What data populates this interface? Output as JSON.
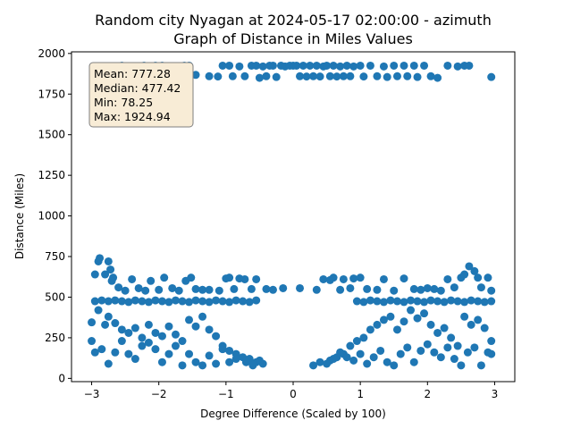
{
  "chart_data": {
    "type": "scatter",
    "title_line1": "Random city Nyagan at 2024-05-17 02:00:00  - azimuth",
    "title_line2": "Graph of Distance in Miles Values",
    "xlabel": "Degree Difference (Scaled by 100)",
    "ylabel": "Distance (Miles)",
    "xlim": [
      -3.3,
      3.3
    ],
    "ylim": [
      -20,
      2010
    ],
    "xticks": [
      -3,
      -2,
      -1,
      0,
      1,
      2,
      3
    ],
    "xtick_labels": [
      "−3",
      "−2",
      "−1",
      "0",
      "1",
      "2",
      "3"
    ],
    "yticks": [
      0,
      250,
      500,
      750,
      1000,
      1250,
      1500,
      1750,
      2000
    ],
    "ytick_labels": [
      "0",
      "250",
      "500",
      "750",
      "1000",
      "1250",
      "1500",
      "1750",
      "2000"
    ],
    "marker_color": "#1f77b4",
    "grid": false,
    "stats": {
      "mean": "Mean: 777.28",
      "median": "Median: 477.42",
      "min": "Min: 78.25",
      "max": "Max: 1924.94",
      "box_face": "#f8ecd6",
      "box_edge": "#7f7f7f"
    },
    "series": [
      {
        "points": [
          [
            -2.97,
            1910
          ],
          [
            -2.8,
            1920
          ],
          [
            -2.55,
            1925
          ],
          [
            -2.35,
            1848
          ],
          [
            -2.22,
            1925
          ],
          [
            -2.05,
            1925
          ],
          [
            -1.95,
            1925
          ],
          [
            -1.72,
            1915
          ],
          [
            -1.62,
            1925
          ],
          [
            -1.55,
            1925
          ],
          [
            -1.45,
            1868
          ],
          [
            -1.25,
            1860
          ],
          [
            -1.12,
            1858
          ],
          [
            -1.05,
            1925
          ],
          [
            -0.95,
            1925
          ],
          [
            -0.9,
            1860
          ],
          [
            -0.8,
            1920
          ],
          [
            -0.72,
            1860
          ],
          [
            -0.62,
            1925
          ],
          [
            -0.55,
            1925
          ],
          [
            -0.5,
            1850
          ],
          [
            -0.45,
            1920
          ],
          [
            -0.4,
            1860
          ],
          [
            -0.35,
            1925
          ],
          [
            -0.3,
            1925
          ],
          [
            -0.25,
            1855
          ],
          [
            -0.18,
            1925
          ],
          [
            -0.12,
            1920
          ],
          [
            -0.05,
            1925
          ],
          [
            0.0,
            1925
          ],
          [
            0.05,
            1925
          ],
          [
            0.1,
            1860
          ],
          [
            0.15,
            1925
          ],
          [
            0.2,
            1858
          ],
          [
            0.25,
            1925
          ],
          [
            0.3,
            1860
          ],
          [
            0.35,
            1925
          ],
          [
            0.4,
            1858
          ],
          [
            0.45,
            1920
          ],
          [
            0.5,
            1925
          ],
          [
            0.55,
            1860
          ],
          [
            0.6,
            1925
          ],
          [
            0.65,
            1858
          ],
          [
            0.7,
            1920
          ],
          [
            0.75,
            1860
          ],
          [
            0.8,
            1925
          ],
          [
            0.85,
            1860
          ],
          [
            0.9,
            1920
          ],
          [
            1.0,
            1925
          ],
          [
            1.05,
            1858
          ],
          [
            1.15,
            1925
          ],
          [
            1.25,
            1860
          ],
          [
            1.35,
            1920
          ],
          [
            1.4,
            1855
          ],
          [
            1.5,
            1925
          ],
          [
            1.55,
            1860
          ],
          [
            1.65,
            1925
          ],
          [
            1.7,
            1860
          ],
          [
            1.8,
            1925
          ],
          [
            1.85,
            1855
          ],
          [
            1.95,
            1925
          ],
          [
            2.05,
            1860
          ],
          [
            2.15,
            1850
          ],
          [
            2.3,
            1925
          ],
          [
            2.45,
            1920
          ],
          [
            2.55,
            1925
          ],
          [
            2.62,
            1925
          ],
          [
            2.95,
            1855
          ],
          [
            -2.9,
            720
          ],
          [
            -2.88,
            740
          ],
          [
            -2.8,
            640
          ],
          [
            -2.75,
            720
          ],
          [
            -2.72,
            670
          ],
          [
            -2.68,
            620
          ],
          [
            -2.95,
            640
          ],
          [
            -2.7,
            600
          ],
          [
            -2.6,
            560
          ],
          [
            -2.5,
            540
          ],
          [
            -2.4,
            610
          ],
          [
            -2.3,
            555
          ],
          [
            -2.2,
            540
          ],
          [
            -2.12,
            600
          ],
          [
            -2.0,
            545
          ],
          [
            -1.92,
            620
          ],
          [
            -1.8,
            555
          ],
          [
            -1.7,
            540
          ],
          [
            -1.6,
            600
          ],
          [
            -1.52,
            620
          ],
          [
            -1.45,
            550
          ],
          [
            -1.35,
            545
          ],
          [
            -1.25,
            545
          ],
          [
            -1.1,
            540
          ],
          [
            -1.0,
            615
          ],
          [
            -0.95,
            620
          ],
          [
            -0.88,
            550
          ],
          [
            -0.8,
            615
          ],
          [
            -0.72,
            610
          ],
          [
            -0.62,
            550
          ],
          [
            -0.55,
            610
          ],
          [
            -0.4,
            550
          ],
          [
            -0.3,
            545
          ],
          [
            -0.15,
            555
          ],
          [
            0.1,
            555
          ],
          [
            0.35,
            545
          ],
          [
            0.45,
            610
          ],
          [
            0.55,
            605
          ],
          [
            0.6,
            620
          ],
          [
            0.7,
            545
          ],
          [
            0.75,
            610
          ],
          [
            0.85,
            555
          ],
          [
            0.9,
            615
          ],
          [
            1.0,
            620
          ],
          [
            1.1,
            550
          ],
          [
            1.25,
            545
          ],
          [
            1.35,
            610
          ],
          [
            1.5,
            540
          ],
          [
            1.65,
            615
          ],
          [
            1.8,
            550
          ],
          [
            1.9,
            545
          ],
          [
            2.0,
            555
          ],
          [
            2.1,
            550
          ],
          [
            2.2,
            540
          ],
          [
            2.3,
            610
          ],
          [
            2.4,
            560
          ],
          [
            2.5,
            620
          ],
          [
            2.55,
            640
          ],
          [
            2.62,
            690
          ],
          [
            2.7,
            660
          ],
          [
            2.75,
            620
          ],
          [
            2.8,
            560
          ],
          [
            2.9,
            620
          ],
          [
            2.95,
            540
          ],
          [
            -2.95,
            475
          ],
          [
            -2.85,
            480
          ],
          [
            -2.75,
            475
          ],
          [
            -2.65,
            480
          ],
          [
            -2.55,
            475
          ],
          [
            -2.45,
            470
          ],
          [
            -2.35,
            480
          ],
          [
            -2.25,
            475
          ],
          [
            -2.15,
            470
          ],
          [
            -2.05,
            480
          ],
          [
            -1.95,
            475
          ],
          [
            -1.85,
            470
          ],
          [
            -1.75,
            480
          ],
          [
            -1.65,
            475
          ],
          [
            -1.55,
            470
          ],
          [
            -1.45,
            480
          ],
          [
            -1.35,
            475
          ],
          [
            -1.25,
            470
          ],
          [
            -1.15,
            480
          ],
          [
            -1.05,
            475
          ],
          [
            -0.95,
            470
          ],
          [
            -0.85,
            480
          ],
          [
            -0.75,
            475
          ],
          [
            -0.65,
            470
          ],
          [
            -0.55,
            480
          ],
          [
            0.95,
            475
          ],
          [
            1.05,
            470
          ],
          [
            1.15,
            480
          ],
          [
            1.25,
            475
          ],
          [
            1.35,
            470
          ],
          [
            1.45,
            480
          ],
          [
            1.55,
            475
          ],
          [
            1.65,
            470
          ],
          [
            1.75,
            480
          ],
          [
            1.85,
            475
          ],
          [
            1.95,
            470
          ],
          [
            2.05,
            480
          ],
          [
            2.15,
            475
          ],
          [
            2.25,
            470
          ],
          [
            2.35,
            480
          ],
          [
            2.45,
            475
          ],
          [
            2.55,
            470
          ],
          [
            2.65,
            480
          ],
          [
            2.75,
            475
          ],
          [
            2.85,
            470
          ],
          [
            2.95,
            475
          ],
          [
            -3.0,
            345
          ],
          [
            -2.9,
            420
          ],
          [
            -2.8,
            330
          ],
          [
            -2.75,
            380
          ],
          [
            -2.65,
            340
          ],
          [
            -2.55,
            300
          ],
          [
            -2.45,
            280
          ],
          [
            -2.35,
            310
          ],
          [
            -2.25,
            250
          ],
          [
            -2.15,
            330
          ],
          [
            -2.05,
            280
          ],
          [
            -1.95,
            260
          ],
          [
            -1.85,
            320
          ],
          [
            -1.75,
            270
          ],
          [
            -1.65,
            230
          ],
          [
            -1.55,
            360
          ],
          [
            -1.45,
            320
          ],
          [
            -1.35,
            380
          ],
          [
            -1.25,
            300
          ],
          [
            -1.15,
            260
          ],
          [
            -1.05,
            200
          ],
          [
            -0.95,
            170
          ],
          [
            -0.85,
            150
          ],
          [
            -0.75,
            130
          ],
          [
            -0.65,
            120
          ],
          [
            -0.55,
            100
          ],
          [
            -0.45,
            90
          ],
          [
            0.55,
            110
          ],
          [
            0.65,
            130
          ],
          [
            0.75,
            150
          ],
          [
            0.85,
            200
          ],
          [
            0.95,
            230
          ],
          [
            1.05,
            250
          ],
          [
            1.15,
            300
          ],
          [
            1.25,
            330
          ],
          [
            1.35,
            360
          ],
          [
            1.45,
            380
          ],
          [
            1.55,
            300
          ],
          [
            1.65,
            350
          ],
          [
            1.75,
            420
          ],
          [
            1.85,
            370
          ],
          [
            1.95,
            400
          ],
          [
            2.05,
            330
          ],
          [
            2.15,
            280
          ],
          [
            2.25,
            310
          ],
          [
            2.35,
            250
          ],
          [
            2.45,
            200
          ],
          [
            2.55,
            380
          ],
          [
            2.65,
            330
          ],
          [
            2.75,
            360
          ],
          [
            2.85,
            310
          ],
          [
            2.95,
            230
          ],
          [
            -3.0,
            230
          ],
          [
            -2.95,
            160
          ],
          [
            -2.85,
            180
          ],
          [
            -2.75,
            90
          ],
          [
            -2.65,
            160
          ],
          [
            -2.55,
            230
          ],
          [
            -2.45,
            150
          ],
          [
            -2.35,
            120
          ],
          [
            -2.25,
            200
          ],
          [
            -2.15,
            220
          ],
          [
            -2.05,
            180
          ],
          [
            -1.95,
            100
          ],
          [
            -1.85,
            150
          ],
          [
            -1.75,
            200
          ],
          [
            -1.65,
            80
          ],
          [
            -1.55,
            150
          ],
          [
            -1.45,
            100
          ],
          [
            -1.35,
            80
          ],
          [
            -1.25,
            140
          ],
          [
            -1.15,
            90
          ],
          [
            -1.05,
            180
          ],
          [
            -0.95,
            100
          ],
          [
            -0.85,
            120
          ],
          [
            -0.7,
            100
          ],
          [
            -0.6,
            80
          ],
          [
            -0.5,
            110
          ],
          [
            0.3,
            80
          ],
          [
            0.4,
            100
          ],
          [
            0.5,
            90
          ],
          [
            0.6,
            120
          ],
          [
            0.7,
            160
          ],
          [
            0.8,
            130
          ],
          [
            0.9,
            110
          ],
          [
            1.0,
            150
          ],
          [
            1.1,
            90
          ],
          [
            1.2,
            130
          ],
          [
            1.3,
            170
          ],
          [
            1.4,
            100
          ],
          [
            1.5,
            80
          ],
          [
            1.6,
            150
          ],
          [
            1.7,
            190
          ],
          [
            1.8,
            100
          ],
          [
            1.9,
            170
          ],
          [
            2.0,
            210
          ],
          [
            2.1,
            160
          ],
          [
            2.2,
            130
          ],
          [
            2.3,
            190
          ],
          [
            2.4,
            120
          ],
          [
            2.5,
            80
          ],
          [
            2.6,
            160
          ],
          [
            2.7,
            190
          ],
          [
            2.8,
            80
          ],
          [
            2.9,
            160
          ],
          [
            2.95,
            150
          ]
        ]
      }
    ]
  }
}
